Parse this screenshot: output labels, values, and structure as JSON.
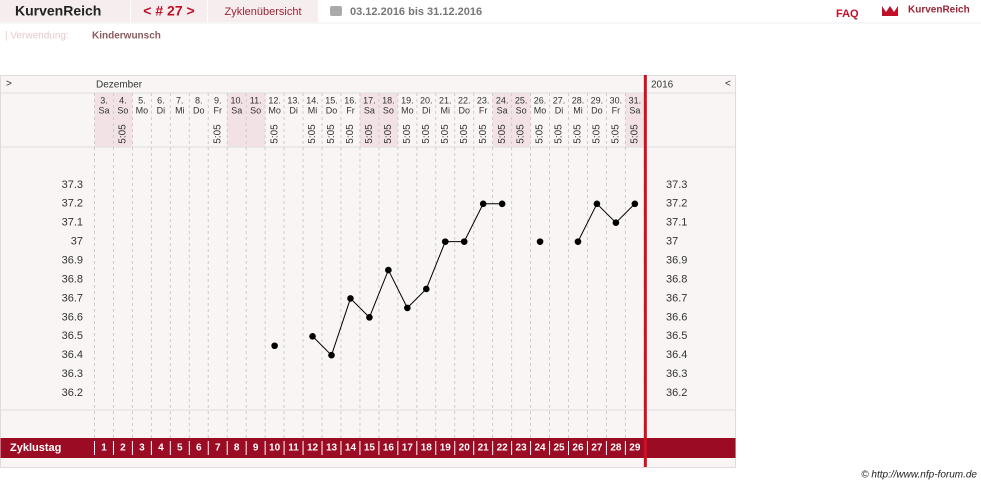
{
  "header": {
    "brand": "KurvenReich",
    "cycle_nav": "< # 27 >",
    "overview": "Zyklenübersicht",
    "date_range": "03.12.2016 bis 31.12.2016",
    "faq": "FAQ",
    "logo": "KurvenReich"
  },
  "usage": {
    "label": "| Verwendung:",
    "value": "Kinderwunsch"
  },
  "chart_data": {
    "type": "line",
    "prev": ">",
    "month": "Dezember",
    "year": "2016",
    "next": "<",
    "dates": [
      "3.",
      "4.",
      "5.",
      "6.",
      "7.",
      "8.",
      "9.",
      "10.",
      "11.",
      "12.",
      "13.",
      "14.",
      "15.",
      "16.",
      "17.",
      "18.",
      "19.",
      "20.",
      "21.",
      "22.",
      "23.",
      "24.",
      "25.",
      "26.",
      "27.",
      "28.",
      "29.",
      "30.",
      "31."
    ],
    "weekdays": [
      "Sa",
      "So",
      "Mo",
      "Di",
      "Mi",
      "Do",
      "Fr",
      "Sa",
      "So",
      "Mo",
      "Di",
      "Mi",
      "Do",
      "Fr",
      "Sa",
      "So",
      "Mo",
      "Di",
      "Mi",
      "Do",
      "Fr",
      "Sa",
      "So",
      "Mo",
      "Di",
      "Mi",
      "Do",
      "Fr",
      "Sa"
    ],
    "times": [
      null,
      "5:05",
      null,
      null,
      null,
      null,
      "5:05",
      null,
      null,
      "5:05",
      null,
      "5:05",
      "5:05",
      "5:05",
      "5:05",
      "5:05",
      "5:05",
      "5:05",
      "5:05",
      "5:05",
      "5:05",
      "5:05",
      "5:05",
      "5:05",
      "5:05",
      "5:05",
      "5:05",
      "5:05",
      "5:05"
    ],
    "weekend": [
      true,
      true,
      false,
      false,
      false,
      false,
      false,
      true,
      true,
      false,
      false,
      false,
      false,
      false,
      true,
      true,
      false,
      false,
      false,
      false,
      false,
      true,
      true,
      false,
      false,
      false,
      false,
      false,
      true
    ],
    "x_label": "Zyklustag",
    "categories": [
      1,
      2,
      3,
      4,
      5,
      6,
      7,
      8,
      9,
      10,
      11,
      12,
      13,
      14,
      15,
      16,
      17,
      18,
      19,
      20,
      21,
      22,
      23,
      24,
      25,
      26,
      27,
      28,
      29
    ],
    "series": [
      {
        "color": "#000000",
        "values": [
          null,
          null,
          null,
          null,
          null,
          null,
          null,
          null,
          null,
          36.45,
          null,
          36.5,
          36.4,
          36.7,
          36.6,
          36.85,
          36.65,
          36.75,
          37.0,
          37.0,
          37.2,
          37.2,
          null,
          37.0,
          null,
          37.0,
          37.2,
          37.1,
          37.2
        ]
      }
    ],
    "ylim": [
      36.1,
      37.5
    ],
    "yticks": [
      36.2,
      36.3,
      36.4,
      36.5,
      36.6,
      36.7,
      36.8,
      36.9,
      37,
      37.1,
      37.2,
      37.3
    ]
  },
  "footer": "© http://www.nfp-forum.de"
}
